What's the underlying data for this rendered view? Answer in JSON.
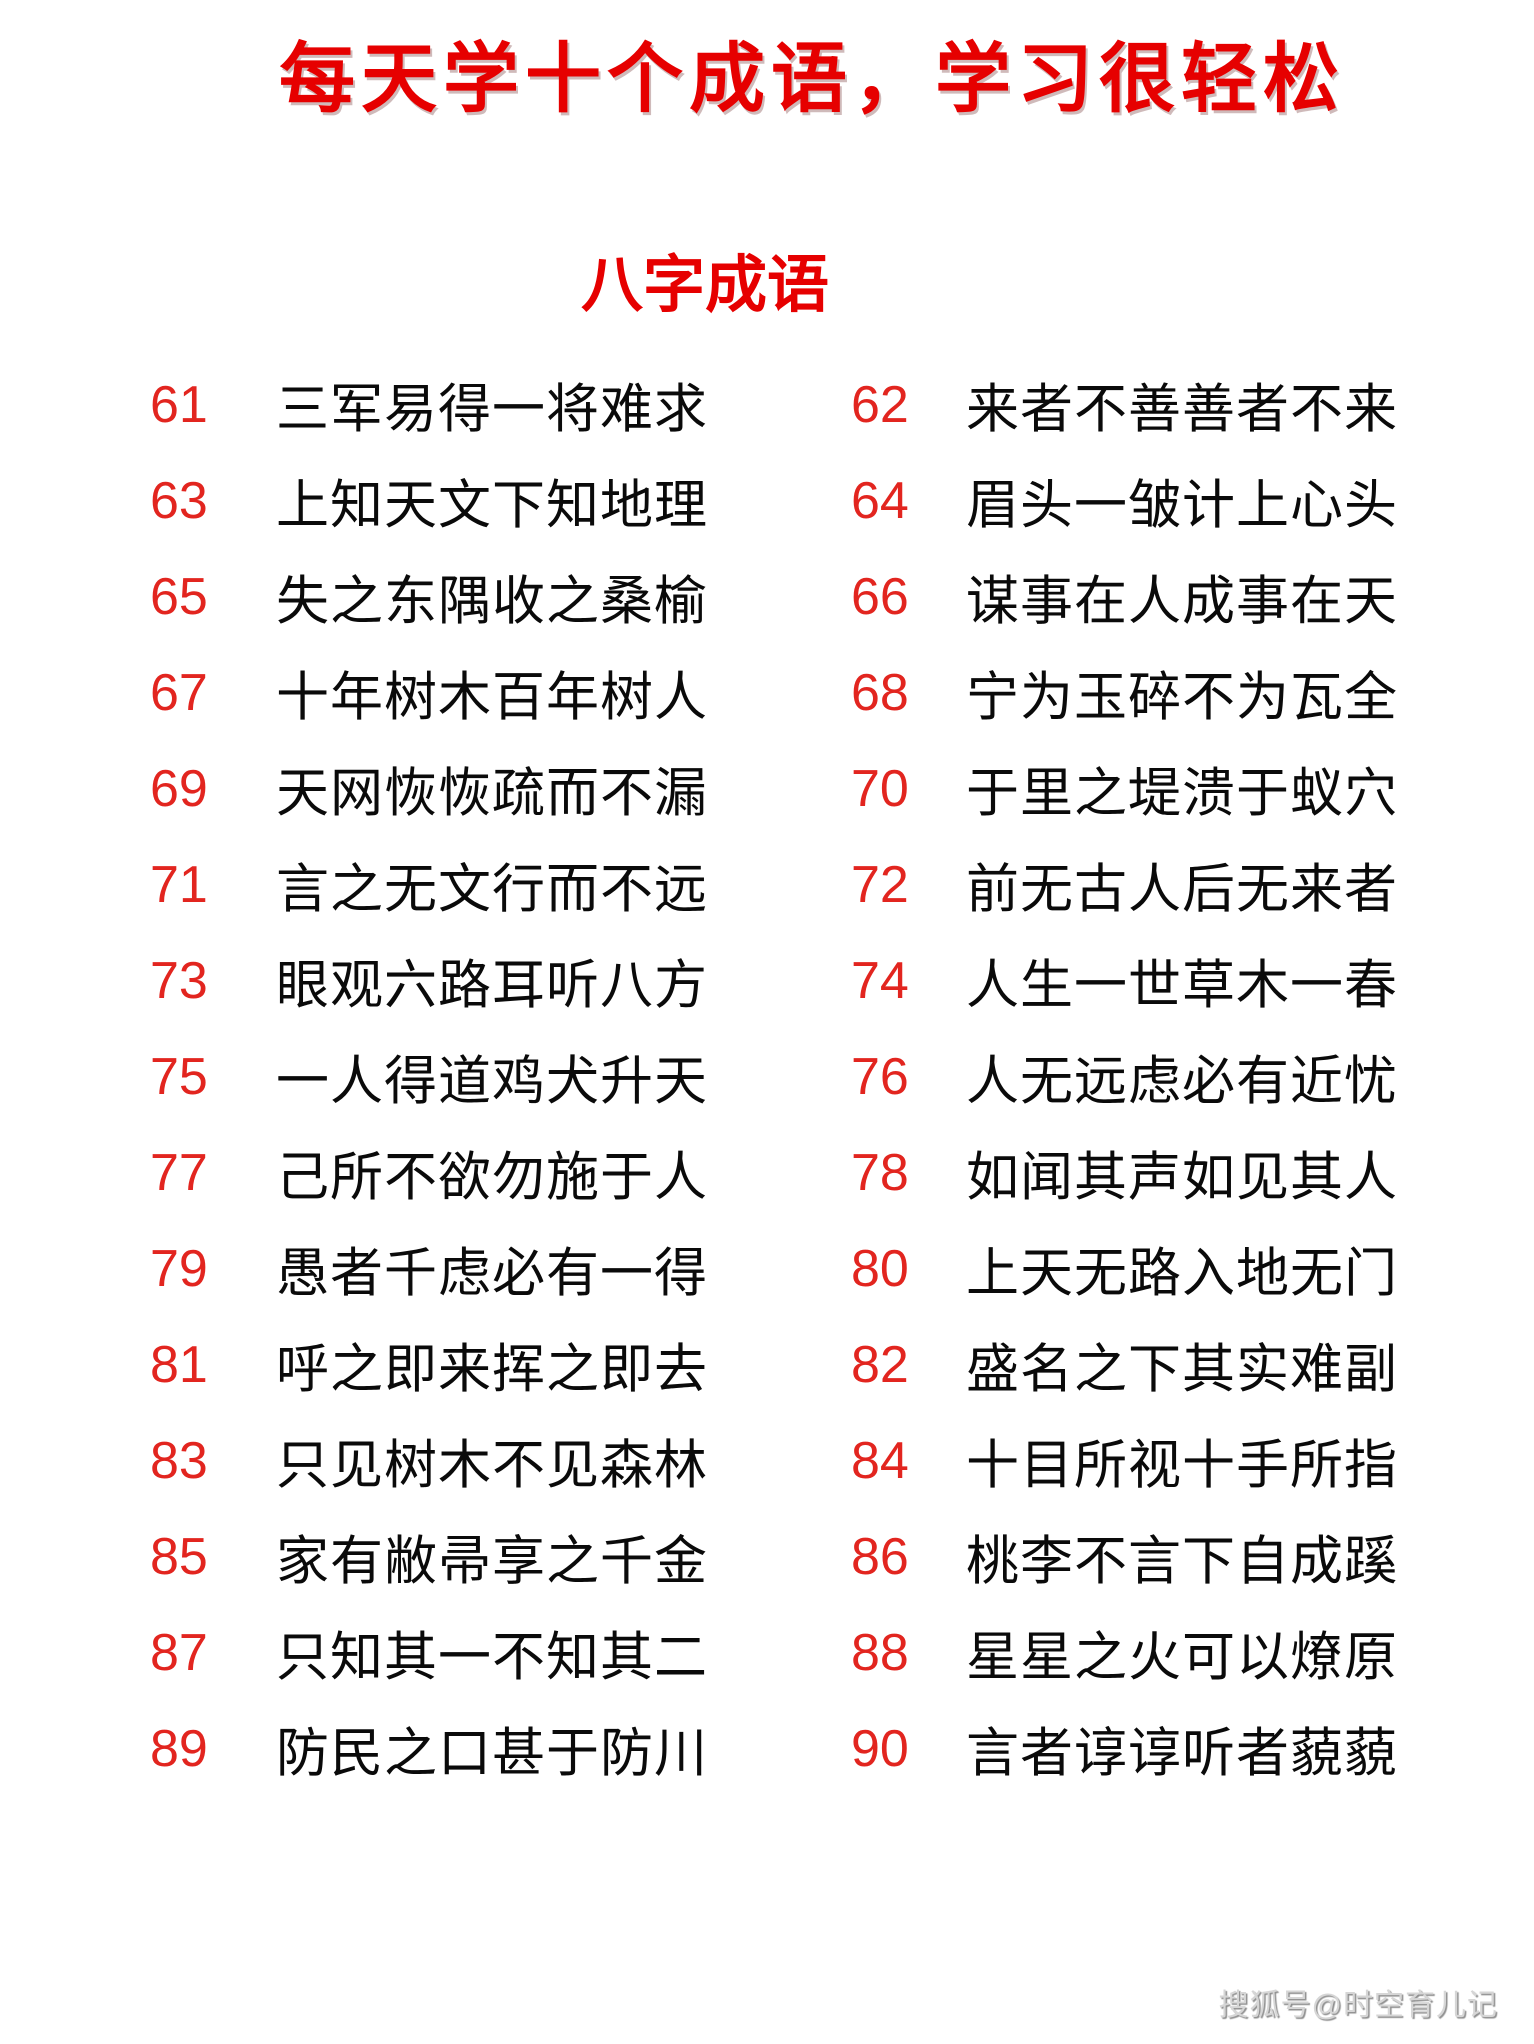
{
  "page": {
    "background": "#ffffff",
    "title": "每天学十个成语，学习很轻松",
    "subtitle": "八字成语",
    "watermark": "搜狐号@时空育儿记",
    "colors": {
      "title_red": "#e60000",
      "number_red": "#e2251f",
      "idiom_black": "#0a0a0a",
      "watermark_gray": "#d6d6d6"
    }
  },
  "idioms": {
    "rows": [
      {
        "left_no": "61",
        "left_text": "三军易得一将难求",
        "right_no": "62",
        "right_text": "来者不善善者不来"
      },
      {
        "left_no": "63",
        "left_text": "上知天文下知地理",
        "right_no": "64",
        "right_text": "眉头一皱计上心头"
      },
      {
        "left_no": "65",
        "left_text": "失之东隅收之桑榆",
        "right_no": "66",
        "right_text": "谋事在人成事在天"
      },
      {
        "left_no": "67",
        "left_text": "十年树木百年树人",
        "right_no": "68",
        "right_text": "宁为玉碎不为瓦全"
      },
      {
        "left_no": "69",
        "left_text": "天网恢恢疏而不漏",
        "right_no": "70",
        "right_text": "于里之堤溃于蚁穴"
      },
      {
        "left_no": "71",
        "left_text": "言之无文行而不远",
        "right_no": "72",
        "right_text": "前无古人后无来者"
      },
      {
        "left_no": "73",
        "left_text": "眼观六路耳听八方",
        "right_no": "74",
        "right_text": "人生一世草木一春"
      },
      {
        "left_no": "75",
        "left_text": "一人得道鸡犬升天",
        "right_no": "76",
        "right_text": "人无远虑必有近忧"
      },
      {
        "left_no": "77",
        "left_text": "己所不欲勿施于人",
        "right_no": "78",
        "right_text": "如闻其声如见其人"
      },
      {
        "left_no": "79",
        "left_text": "愚者千虑必有一得",
        "right_no": "80",
        "right_text": "上天无路入地无门"
      },
      {
        "left_no": "81",
        "left_text": "呼之即来挥之即去",
        "right_no": "82",
        "right_text": "盛名之下其实难副"
      },
      {
        "left_no": "83",
        "left_text": "只见树木不见森林",
        "right_no": "84",
        "right_text": "十目所视十手所指"
      },
      {
        "left_no": "85",
        "left_text": "家有敝帚享之千金",
        "right_no": "86",
        "right_text": "桃李不言下自成蹊"
      },
      {
        "left_no": "87",
        "left_text": "只知其一不知其二",
        "right_no": "88",
        "right_text": "星星之火可以燎原"
      },
      {
        "left_no": "89",
        "left_text": "防民之口甚于防川",
        "right_no": "90",
        "right_text": "言者谆谆听者藐藐"
      }
    ]
  }
}
